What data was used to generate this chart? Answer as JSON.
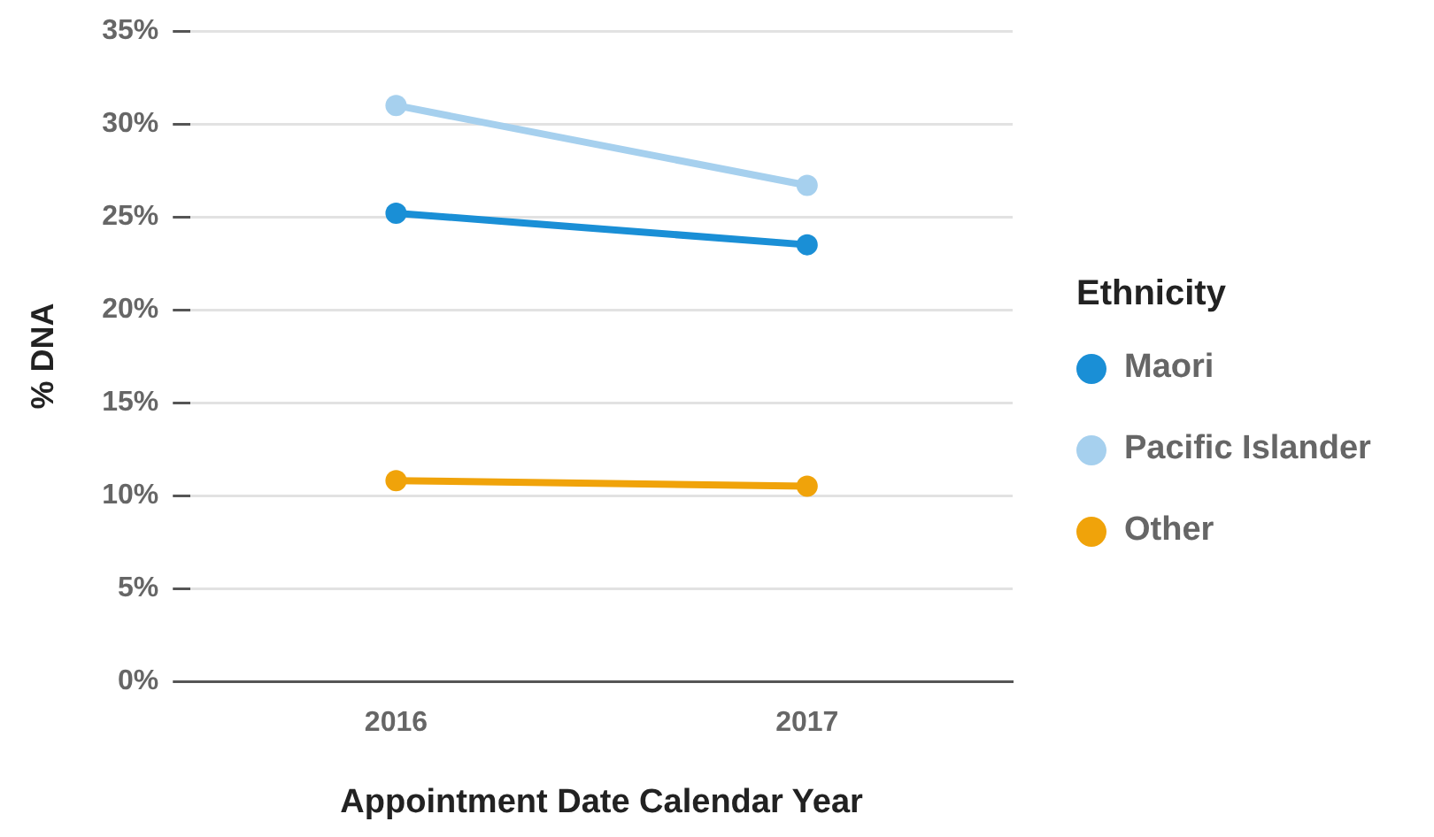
{
  "chart_data": {
    "type": "line",
    "xlabel": "Appointment Date Calendar Year",
    "ylabel": "% DNA",
    "legend_title": "Ethnicity",
    "categories": [
      "2016",
      "2017"
    ],
    "series": [
      {
        "name": "Maori",
        "color": "#1a8fd6",
        "values": [
          25.2,
          23.5
        ]
      },
      {
        "name": "Pacific Islander",
        "color": "#a6d0ee",
        "values": [
          31.0,
          26.7
        ]
      },
      {
        "name": "Other",
        "color": "#f0a30a",
        "values": [
          10.8,
          10.5
        ]
      }
    ],
    "ylim": [
      0,
      35
    ],
    "yticks": [
      {
        "value": 0,
        "label": "0%"
      },
      {
        "value": 5,
        "label": "5%"
      },
      {
        "value": 10,
        "label": "10%"
      },
      {
        "value": 15,
        "label": "15%"
      },
      {
        "value": 20,
        "label": "20%"
      },
      {
        "value": 25,
        "label": "25%"
      },
      {
        "value": 30,
        "label": "30%"
      },
      {
        "value": 35,
        "label": "35%"
      }
    ],
    "grid": "y",
    "legend": "right",
    "marker": "circle",
    "line_style": "solid"
  }
}
